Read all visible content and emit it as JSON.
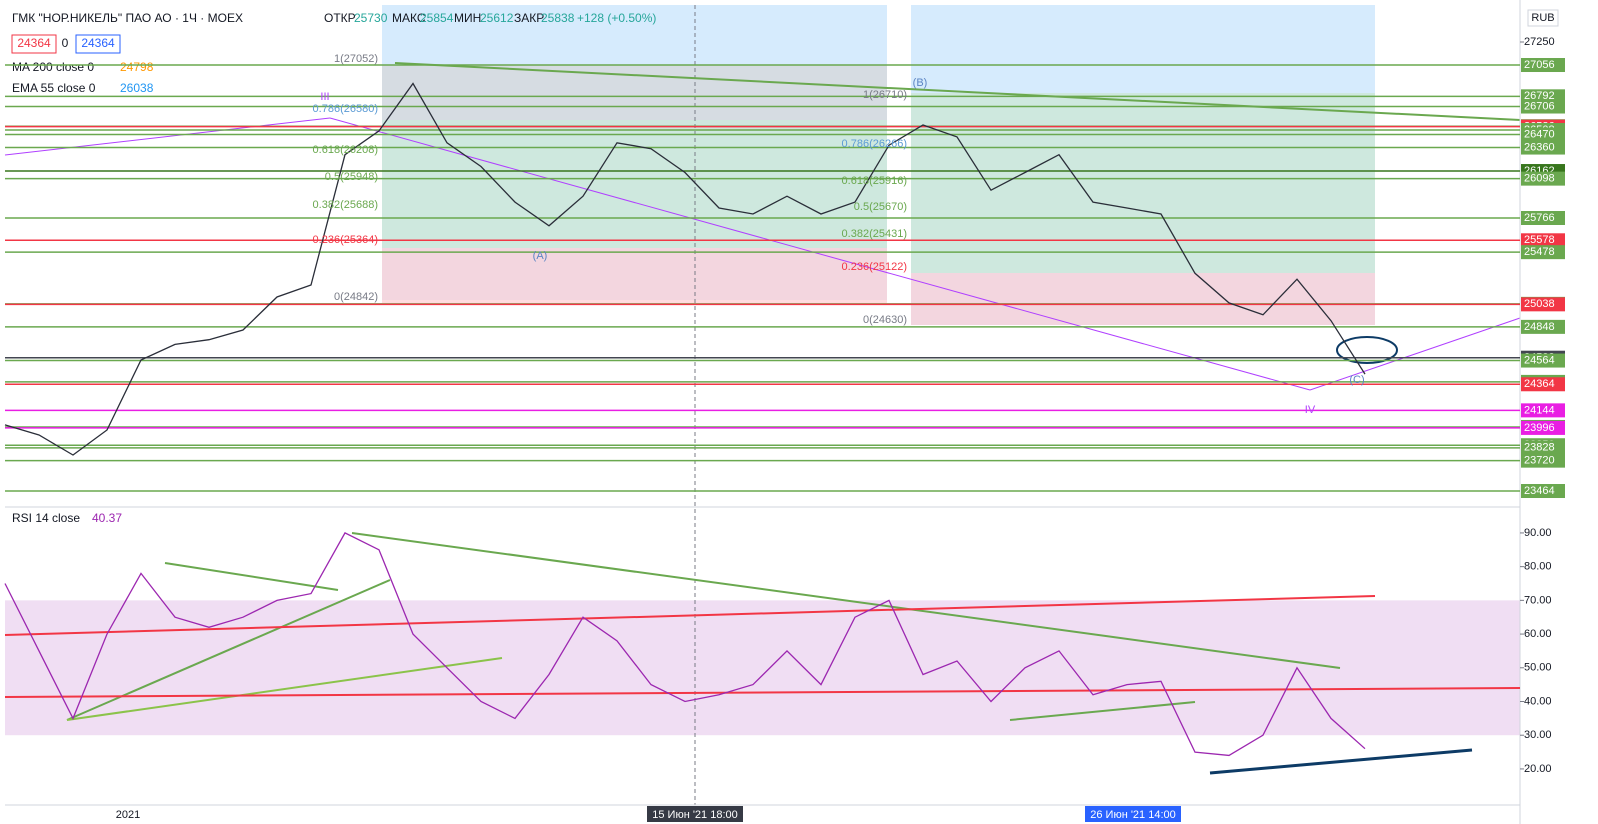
{
  "header": {
    "symbol": "ГМК \"НОР.НИКЕЛЬ\" ПАО АО · 1Ч · MOEX",
    "open_label": "ОТКР",
    "open": 25730,
    "high_label": "МАКС",
    "high": 25854,
    "low_label": "МИН",
    "low": 25612,
    "close_label": "ЗАКР",
    "close": 25838,
    "change": "+128 (+0.50%)",
    "badge_left": 24364,
    "badge_mid": 0,
    "badge_right": 24364,
    "ma_label": "MA 200 close 0",
    "ma_value": 24798,
    "ema_label": "EMA 55 close 0",
    "ema_value": 26038,
    "rsi_label": "RSI 14 close",
    "rsi_value": 40.37,
    "currency": "RUB"
  },
  "x_labels": [
    "2021",
    "15 Июн '21  18:00",
    "26 Июн '21  14:00"
  ],
  "annotations": [
    "III",
    "(A)",
    "(B)",
    "(C)",
    "IV",
    "1(27052)",
    "0.786(26580)",
    "0.618(26208)",
    "0.5(25948)",
    "0.382(25688)",
    "0.236(25364)",
    "0(24842)",
    "1(26710)",
    "0.786(26266)",
    "0.618(25916)",
    "0.5(25670)",
    "0.382(25431)",
    "0.236(25122)",
    "0(24630)"
  ],
  "chart_data": [
    {
      "type": "line",
      "color": "#2a2e39",
      "ylim": [
        23346,
        27562
      ],
      "yticks": [
        27250,
        27056,
        26792,
        26706,
        26540,
        26536,
        26508,
        26470,
        26360,
        26162,
        26098,
        25766,
        25578,
        25478,
        25042,
        25038,
        24848,
        24588,
        24564,
        24384,
        24364,
        24144,
        24004,
        23996,
        23850,
        23828,
        23720,
        23464
      ],
      "level_colors": [
        "#ffffff",
        "#6aa84f",
        "#6aa84f",
        "#6aa84f",
        "#6aa84f",
        "#f23645",
        "#6aa84f",
        "#6aa84f",
        "#6aa84f",
        "#38761d",
        "#6aa84f",
        "#6aa84f",
        "#f23645",
        "#6aa84f",
        "#6aa84f",
        "#f23645",
        "#6aa84f",
        "#434651",
        "#6aa84f",
        "#6aa84f",
        "#f23645",
        "#e91ee3",
        "#6aa84f",
        "#e91ee3",
        "#6aa84f",
        "#6aa84f",
        "#6aa84f",
        "#6aa84f"
      ],
      "values": [
        24021,
        23936,
        23768,
        23978,
        24569,
        24700,
        24740,
        24822,
        25100,
        25201,
        26300,
        26500,
        26900,
        26400,
        26200,
        25900,
        25700,
        25950,
        26400,
        26350,
        26150,
        25850,
        25800,
        25950,
        25800,
        25900,
        26380,
        26550,
        26450,
        26000,
        26150,
        26300,
        25900,
        25850,
        25800,
        25300,
        25050,
        24950,
        25250,
        24900,
        24450
      ]
    },
    {
      "type": "line",
      "color": "#9c27b0",
      "ylim": [
        9.3,
        96.8
      ],
      "band": [
        30,
        70
      ],
      "yticks": [
        {
          "value": 20,
          "label": "20.00"
        },
        {
          "value": 30,
          "label": "30.00"
        },
        {
          "value": 40,
          "label": "40.00"
        },
        {
          "value": 50,
          "label": "50.00"
        },
        {
          "value": 60,
          "label": "60.00"
        },
        {
          "value": 70,
          "label": "70.00"
        },
        {
          "value": 80,
          "label": "80.00"
        },
        {
          "value": 90,
          "label": "90.00"
        }
      ],
      "values": [
        75,
        55,
        35,
        60,
        78,
        65,
        62,
        65,
        70,
        72,
        90,
        85,
        60,
        50,
        40,
        35,
        48,
        65,
        58,
        45,
        40,
        42,
        45,
        55,
        45,
        65,
        70,
        48,
        52,
        40,
        50,
        55,
        42,
        45,
        46,
        25,
        24,
        30,
        50,
        35,
        26
      ]
    }
  ]
}
